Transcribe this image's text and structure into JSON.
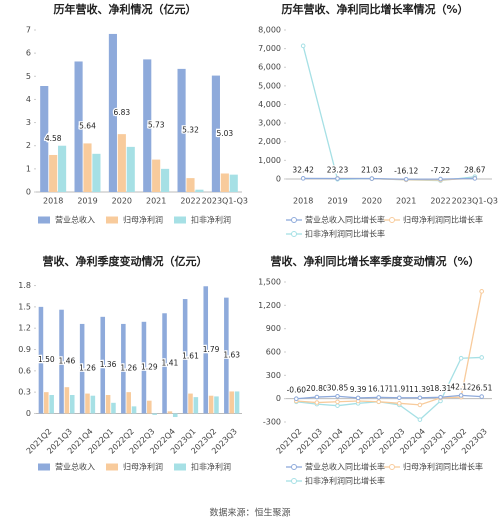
{
  "chart_data": [
    {
      "type": "bar",
      "title": "历年营收、净利情况（亿元）",
      "categories": [
        "2018",
        "2019",
        "2020",
        "2021",
        "2022",
        "2023Q1-Q3"
      ],
      "series": [
        {
          "name": "营业总收入",
          "color": "#8eaadb",
          "values": [
            4.58,
            5.64,
            6.83,
            5.73,
            5.32,
            5.03
          ]
        },
        {
          "name": "归母净利润",
          "color": "#f8cb9c",
          "values": [
            1.6,
            2.1,
            2.5,
            1.4,
            0.6,
            0.8
          ]
        },
        {
          "name": "扣非净利润",
          "color": "#a6e0e5",
          "values": [
            2.0,
            1.65,
            1.95,
            1.0,
            0.1,
            0.75
          ]
        }
      ],
      "ylim": [
        0,
        7
      ],
      "yticks": [
        0,
        1,
        2,
        3,
        4,
        5,
        6,
        7
      ],
      "grid": false
    },
    {
      "type": "line",
      "title": "历年营收、净利同比增长率情况（%）",
      "categories": [
        "2018",
        "2019",
        "2020",
        "2021",
        "2022",
        "2023Q1-Q3"
      ],
      "series": [
        {
          "name": "营业总收入同比增长率",
          "color": "#8eaadb",
          "values": [
            32.42,
            23.23,
            21.03,
            -16.12,
            -7.22,
            28.67
          ]
        },
        {
          "name": "归母净利润同比增长率",
          "color": "#f8cb9c",
          "values": [
            null,
            31,
            19,
            -44,
            -57,
            40
          ]
        },
        {
          "name": "扣非净利润同比增长率",
          "color": "#a6e0e5",
          "values": [
            7150,
            -17,
            18,
            -48,
            -90,
            120
          ]
        }
      ],
      "ylim": [
        -700,
        8000
      ],
      "yticks": [
        0,
        {
          "value": 1000,
          "label": "1,000"
        },
        {
          "value": 2000,
          "label": "2,000"
        },
        {
          "value": 3000,
          "label": "3,000"
        },
        {
          "value": 4000,
          "label": "4,000"
        },
        {
          "value": 5000,
          "label": "5,000"
        },
        {
          "value": 6000,
          "label": "6,000"
        },
        {
          "value": 7000,
          "label": "7,000"
        },
        {
          "value": 8000,
          "label": "8,000"
        }
      ],
      "grid": false
    },
    {
      "type": "bar",
      "title": "营收、净利季度变动情况（亿元）",
      "categories": [
        "2021Q2",
        "2021Q3",
        "2021Q4",
        "2022Q1",
        "2022Q2",
        "2022Q3",
        "2022Q4",
        "2023Q1",
        "2023Q2",
        "2023Q3"
      ],
      "series": [
        {
          "name": "营业总收入",
          "color": "#8eaadb",
          "values": [
            1.5,
            1.46,
            1.26,
            1.36,
            1.26,
            1.29,
            1.41,
            1.61,
            1.79,
            1.63
          ],
          "value_labels": [
            "1.50",
            "1.46",
            "1.26",
            "1.36",
            "1.26",
            "1.29",
            "1.41",
            "1.61",
            "1.79",
            "1.63"
          ]
        },
        {
          "name": "归母净利润",
          "color": "#f8cb9c",
          "values": [
            0.3,
            0.37,
            0.28,
            0.26,
            0.3,
            0.18,
            0.03,
            0.28,
            0.25,
            0.31
          ]
        },
        {
          "name": "扣非净利润",
          "color": "#a6e0e5",
          "values": [
            0.26,
            0.26,
            0.25,
            0.15,
            0.1,
            -0.02,
            -0.05,
            0.23,
            0.24,
            0.31
          ]
        }
      ],
      "ylim": [
        -0.12,
        1.85
      ],
      "yticks": [
        0,
        0.3,
        0.6,
        0.9,
        1.2,
        1.5,
        1.8
      ],
      "grid": false
    },
    {
      "type": "line",
      "title": "营收、净利同比增长率季度变动情况（%）",
      "categories": [
        "2021Q2",
        "2021Q3",
        "2021Q4",
        "2022Q1",
        "2022Q2",
        "2022Q3",
        "2022Q4",
        "2023Q1",
        "2023Q2",
        "2023Q3"
      ],
      "series": [
        {
          "name": "营业总收入同比增长率",
          "color": "#8eaadb",
          "values": [
            -0.6,
            20.8,
            30.85,
            9.39,
            16.17,
            11.91,
            11.39,
            18.31,
            42.12,
            26.51
          ],
          "value_labels": [
            "-0.60",
            "20.80",
            "30.85",
            "9.39",
            "16.17",
            "11.91",
            "11.39",
            "18.31",
            "42.12",
            "26.51"
          ]
        },
        {
          "name": "归母净利润同比增长率",
          "color": "#f8cb9c",
          "values": [
            -30,
            -50,
            -40,
            -30,
            -40,
            -60,
            -80,
            10,
            20,
            1380
          ]
        },
        {
          "name": "扣非净利润同比增长率",
          "color": "#a6e0e5",
          "values": [
            -40,
            -70,
            -90,
            -60,
            -40,
            -80,
            -270,
            -30,
            520,
            530
          ]
        }
      ],
      "ylim": [
        -300,
        1500
      ],
      "yticks": [
        -300,
        0,
        300,
        600,
        900,
        {
          "value": 1200,
          "label": "1,200"
        },
        {
          "value": 1500,
          "label": "1,500"
        }
      ],
      "grid": false
    }
  ],
  "footer": "数据来源：恒生聚源"
}
